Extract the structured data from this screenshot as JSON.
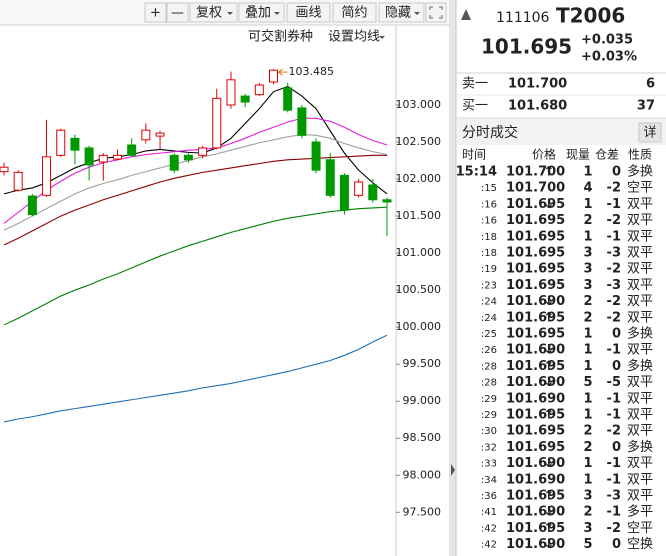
{
  "toolbar": [
    "+",
    "—",
    "复权",
    "叠加",
    "画线",
    "简约",
    "隐藏"
  ],
  "chart_menu": [
    "可交割券种",
    "设置均线"
  ],
  "chart_data": {
    "type": "candlestick",
    "open": [
      102.1,
      101.85,
      101.77,
      101.78,
      102.32,
      102.55,
      102.42,
      102.23,
      102.27,
      102.46,
      102.53,
      102.58,
      102.32,
      102.32,
      102.32,
      102.42,
      103.0,
      103.12,
      103.14,
      103.31,
      103.23,
      102.96,
      102.5,
      102.26,
      102.05,
      101.78,
      101.92,
      101.72
    ],
    "high": [
      102.22,
      102.12,
      101.8,
      102.8,
      102.68,
      102.6,
      102.45,
      102.35,
      102.4,
      102.55,
      102.75,
      102.65,
      102.35,
      102.35,
      102.45,
      103.22,
      103.45,
      103.15,
      103.3,
      103.485,
      103.3,
      103.0,
      102.55,
      102.35,
      102.08,
      102.0,
      102.0,
      101.75
    ],
    "low": [
      102.05,
      101.83,
      101.5,
      101.76,
      102.3,
      102.2,
      101.98,
      101.98,
      102.25,
      102.3,
      102.48,
      102.4,
      102.08,
      102.22,
      102.28,
      102.4,
      102.95,
      102.97,
      103.12,
      103.28,
      102.9,
      102.55,
      102.08,
      101.75,
      101.52,
      101.75,
      101.68,
      101.23
    ],
    "close": [
      102.16,
      102.09,
      101.52,
      102.3,
      102.66,
      102.39,
      102.19,
      102.32,
      102.32,
      102.32,
      102.66,
      102.62,
      102.12,
      102.26,
      102.42,
      103.09,
      103.34,
      103.04,
      103.27,
      103.47,
      102.93,
      102.59,
      102.12,
      101.78,
      101.58,
      101.96,
      101.72,
      101.69
    ],
    "up_color": "#e00000",
    "down_color": "#009900",
    "series": [
      {
        "color": "#000000",
        "values": [
          101.8,
          101.85,
          101.88,
          101.95,
          102.05,
          102.15,
          102.22,
          102.28,
          102.3,
          102.33,
          102.38,
          102.4,
          102.38,
          102.36,
          102.35,
          102.42,
          102.55,
          102.75,
          102.95,
          103.18,
          103.25,
          103.12,
          102.95,
          102.65,
          102.35,
          102.12,
          101.95,
          101.8
        ]
      },
      {
        "color": "#e020e0",
        "values": [
          101.4,
          101.55,
          101.7,
          101.85,
          101.97,
          102.08,
          102.16,
          102.22,
          102.26,
          102.3,
          102.33,
          102.35,
          102.37,
          102.39,
          102.4,
          102.42,
          102.48,
          102.55,
          102.63,
          102.7,
          102.77,
          102.82,
          102.82,
          102.78,
          102.7,
          102.6,
          102.52,
          102.46
        ]
      },
      {
        "color": "#a0a0a0",
        "values": [
          101.31,
          101.4,
          101.5,
          101.6,
          101.7,
          101.8,
          101.88,
          101.94,
          101.99,
          102.05,
          102.1,
          102.15,
          102.2,
          102.25,
          102.3,
          102.34,
          102.39,
          102.44,
          102.49,
          102.53,
          102.57,
          102.6,
          102.59,
          102.55,
          102.48,
          102.42,
          102.37,
          102.33
        ]
      },
      {
        "color": "#8b0000",
        "values": [
          101.11,
          101.2,
          101.3,
          101.4,
          101.5,
          101.58,
          101.65,
          101.72,
          101.78,
          101.84,
          101.9,
          101.96,
          102.01,
          102.05,
          102.09,
          102.12,
          102.15,
          102.18,
          102.21,
          102.24,
          102.26,
          102.27,
          102.28,
          102.29,
          102.3,
          102.31,
          102.32,
          102.32
        ]
      },
      {
        "color": "#008000",
        "values": [
          100.03,
          100.12,
          100.22,
          100.32,
          100.42,
          100.5,
          100.57,
          100.65,
          100.72,
          100.8,
          100.88,
          100.96,
          101.03,
          101.1,
          101.16,
          101.22,
          101.28,
          101.33,
          101.38,
          101.43,
          101.47,
          101.5,
          101.53,
          101.56,
          101.58,
          101.6,
          101.61,
          101.62
        ]
      },
      {
        "color": "#1f6fb5",
        "values": [
          98.72,
          98.76,
          98.79,
          98.83,
          98.87,
          98.9,
          98.93,
          98.96,
          98.99,
          99.02,
          99.05,
          99.08,
          99.11,
          99.14,
          99.18,
          99.21,
          99.24,
          99.28,
          99.32,
          99.36,
          99.4,
          99.45,
          99.5,
          99.55,
          99.62,
          99.7,
          99.8,
          99.89
        ]
      }
    ],
    "annotation": {
      "value": 103.485,
      "label": "103.485"
    },
    "ylim": [
      96.91,
      103.81
    ],
    "yticks": [
      {
        "value": 103.0,
        "label": "103.000"
      },
      {
        "value": 102.5,
        "label": "102.500"
      },
      {
        "value": 102.0,
        "label": "102.000"
      },
      {
        "value": 101.5,
        "label": "101.500"
      },
      {
        "value": 101.0,
        "label": "101.000"
      },
      {
        "value": 100.5,
        "label": "100.500"
      },
      {
        "value": 100.0,
        "label": "100.000"
      },
      {
        "value": 99.5,
        "label": "99.500"
      },
      {
        "value": 99.0,
        "label": "99.000"
      },
      {
        "value": 98.5,
        "label": "98.500"
      },
      {
        "value": 98.0,
        "label": "98.000"
      },
      {
        "value": 97.5,
        "label": "97.500"
      }
    ]
  },
  "quote": {
    "code": "111106",
    "symbol": "T2006",
    "price": "101.695",
    "change": "+0.035",
    "change_pct": "+0.03%"
  },
  "book": [
    {
      "label": "卖一",
      "price": "101.700",
      "qty": 6
    },
    {
      "label": "买一",
      "price": "101.680",
      "qty": 37
    }
  ],
  "trades": {
    "title": "分时成交",
    "detail": "详",
    "columns": [
      "时间",
      "价格",
      "现量",
      "仓差",
      "性质"
    ],
    "rows": [
      {
        "time": "15:14",
        "price": "101.700",
        "arrow": "↑",
        "volume": 1,
        "change": 0,
        "nature": "多换",
        "vol_color": "#e00000",
        "nature_color": "#e00000"
      },
      {
        "time": ":15",
        "price": "101.700",
        "volume": 4,
        "change": -2,
        "nature": "空平",
        "vol_color": "#e00000",
        "nature_color": "#e00000"
      },
      {
        "time": ":16",
        "price": "101.695",
        "arrow": "↓",
        "volume": 1,
        "change": -1,
        "nature": "双平",
        "vol_color": "#009900",
        "nature_color": "#009900"
      },
      {
        "time": ":16",
        "price": "101.695",
        "volume": 2,
        "change": -2,
        "nature": "双平",
        "vol_color": "#009900",
        "nature_color": "#009900"
      },
      {
        "time": ":18",
        "price": "101.695",
        "volume": 1,
        "change": -1,
        "nature": "双平",
        "vol_color": "#009900",
        "nature_color": "#009900"
      },
      {
        "time": ":18",
        "price": "101.695",
        "volume": 3,
        "change": -3,
        "nature": "双平",
        "vol_color": "#009900",
        "nature_color": "#009900"
      },
      {
        "time": ":19",
        "price": "101.695",
        "volume": 3,
        "change": -2,
        "nature": "双平",
        "vol_color": "#009900",
        "nature_color": "#009900"
      },
      {
        "time": ":23",
        "price": "101.695",
        "volume": 3,
        "change": -3,
        "nature": "双平",
        "vol_color": "#009900",
        "nature_color": "#009900"
      },
      {
        "time": ":24",
        "price": "101.690",
        "arrow": "↓",
        "volume": 2,
        "change": -2,
        "nature": "双平",
        "vol_color": "#009900",
        "nature_color": "#009900"
      },
      {
        "time": ":24",
        "price": "101.695",
        "arrow": "↑",
        "volume": 2,
        "change": -2,
        "nature": "双平",
        "vol_color": "#e00000",
        "nature_color": "#009900"
      },
      {
        "time": ":25",
        "price": "101.695",
        "volume": 1,
        "change": 0,
        "nature": "多换",
        "vol_color": "#e00000",
        "nature_color": "#e00000"
      },
      {
        "time": ":26",
        "price": "101.690",
        "arrow": "↓",
        "volume": 1,
        "change": -1,
        "nature": "双平",
        "vol_color": "#009900",
        "nature_color": "#009900"
      },
      {
        "time": ":28",
        "price": "101.695",
        "arrow": "↑",
        "volume": 1,
        "change": 0,
        "nature": "多换",
        "vol_color": "#e00000",
        "nature_color": "#e00000"
      },
      {
        "time": ":28",
        "price": "101.690",
        "arrow": "↓",
        "volume": 5,
        "change": -5,
        "nature": "双平",
        "vol_color": "#009900",
        "nature_color": "#009900"
      },
      {
        "time": ":29",
        "price": "101.690",
        "volume": 1,
        "change": -1,
        "nature": "双平",
        "vol_color": "#009900",
        "nature_color": "#009900"
      },
      {
        "time": ":29",
        "price": "101.695",
        "arrow": "↑",
        "volume": 1,
        "change": -1,
        "nature": "双平",
        "vol_color": "#e00000",
        "nature_color": "#009900"
      },
      {
        "time": ":30",
        "price": "101.695",
        "volume": 2,
        "change": -2,
        "nature": "双平",
        "vol_color": "#e00000",
        "nature_color": "#009900"
      },
      {
        "time": ":32",
        "price": "101.695",
        "volume": 2,
        "change": 0,
        "nature": "多换",
        "vol_color": "#e00000",
        "nature_color": "#e00000"
      },
      {
        "time": ":33",
        "price": "101.690",
        "arrow": "↓",
        "volume": 1,
        "change": -1,
        "nature": "双平",
        "vol_color": "#009900",
        "nature_color": "#009900"
      },
      {
        "time": ":34",
        "price": "101.690",
        "volume": 1,
        "change": -1,
        "nature": "双平",
        "vol_color": "#009900",
        "nature_color": "#009900"
      },
      {
        "time": ":36",
        "price": "101.695",
        "arrow": "↑",
        "volume": 3,
        "change": -3,
        "nature": "双平",
        "vol_color": "#e00000",
        "nature_color": "#009900"
      },
      {
        "time": ":41",
        "price": "101.690",
        "arrow": "↓",
        "volume": 2,
        "change": -1,
        "nature": "多平",
        "vol_color": "#009900",
        "nature_color": "#009900"
      },
      {
        "time": ":42",
        "price": "101.695",
        "arrow": "↑",
        "volume": 3,
        "change": -2,
        "nature": "空平",
        "vol_color": "#e00000",
        "nature_color": "#e00000"
      },
      {
        "time": ":42",
        "price": "101.690",
        "arrow": "↓",
        "volume": 5,
        "change": 0,
        "nature": "空换",
        "vol_color": "#009900",
        "nature_color": "#009900"
      }
    ]
  }
}
